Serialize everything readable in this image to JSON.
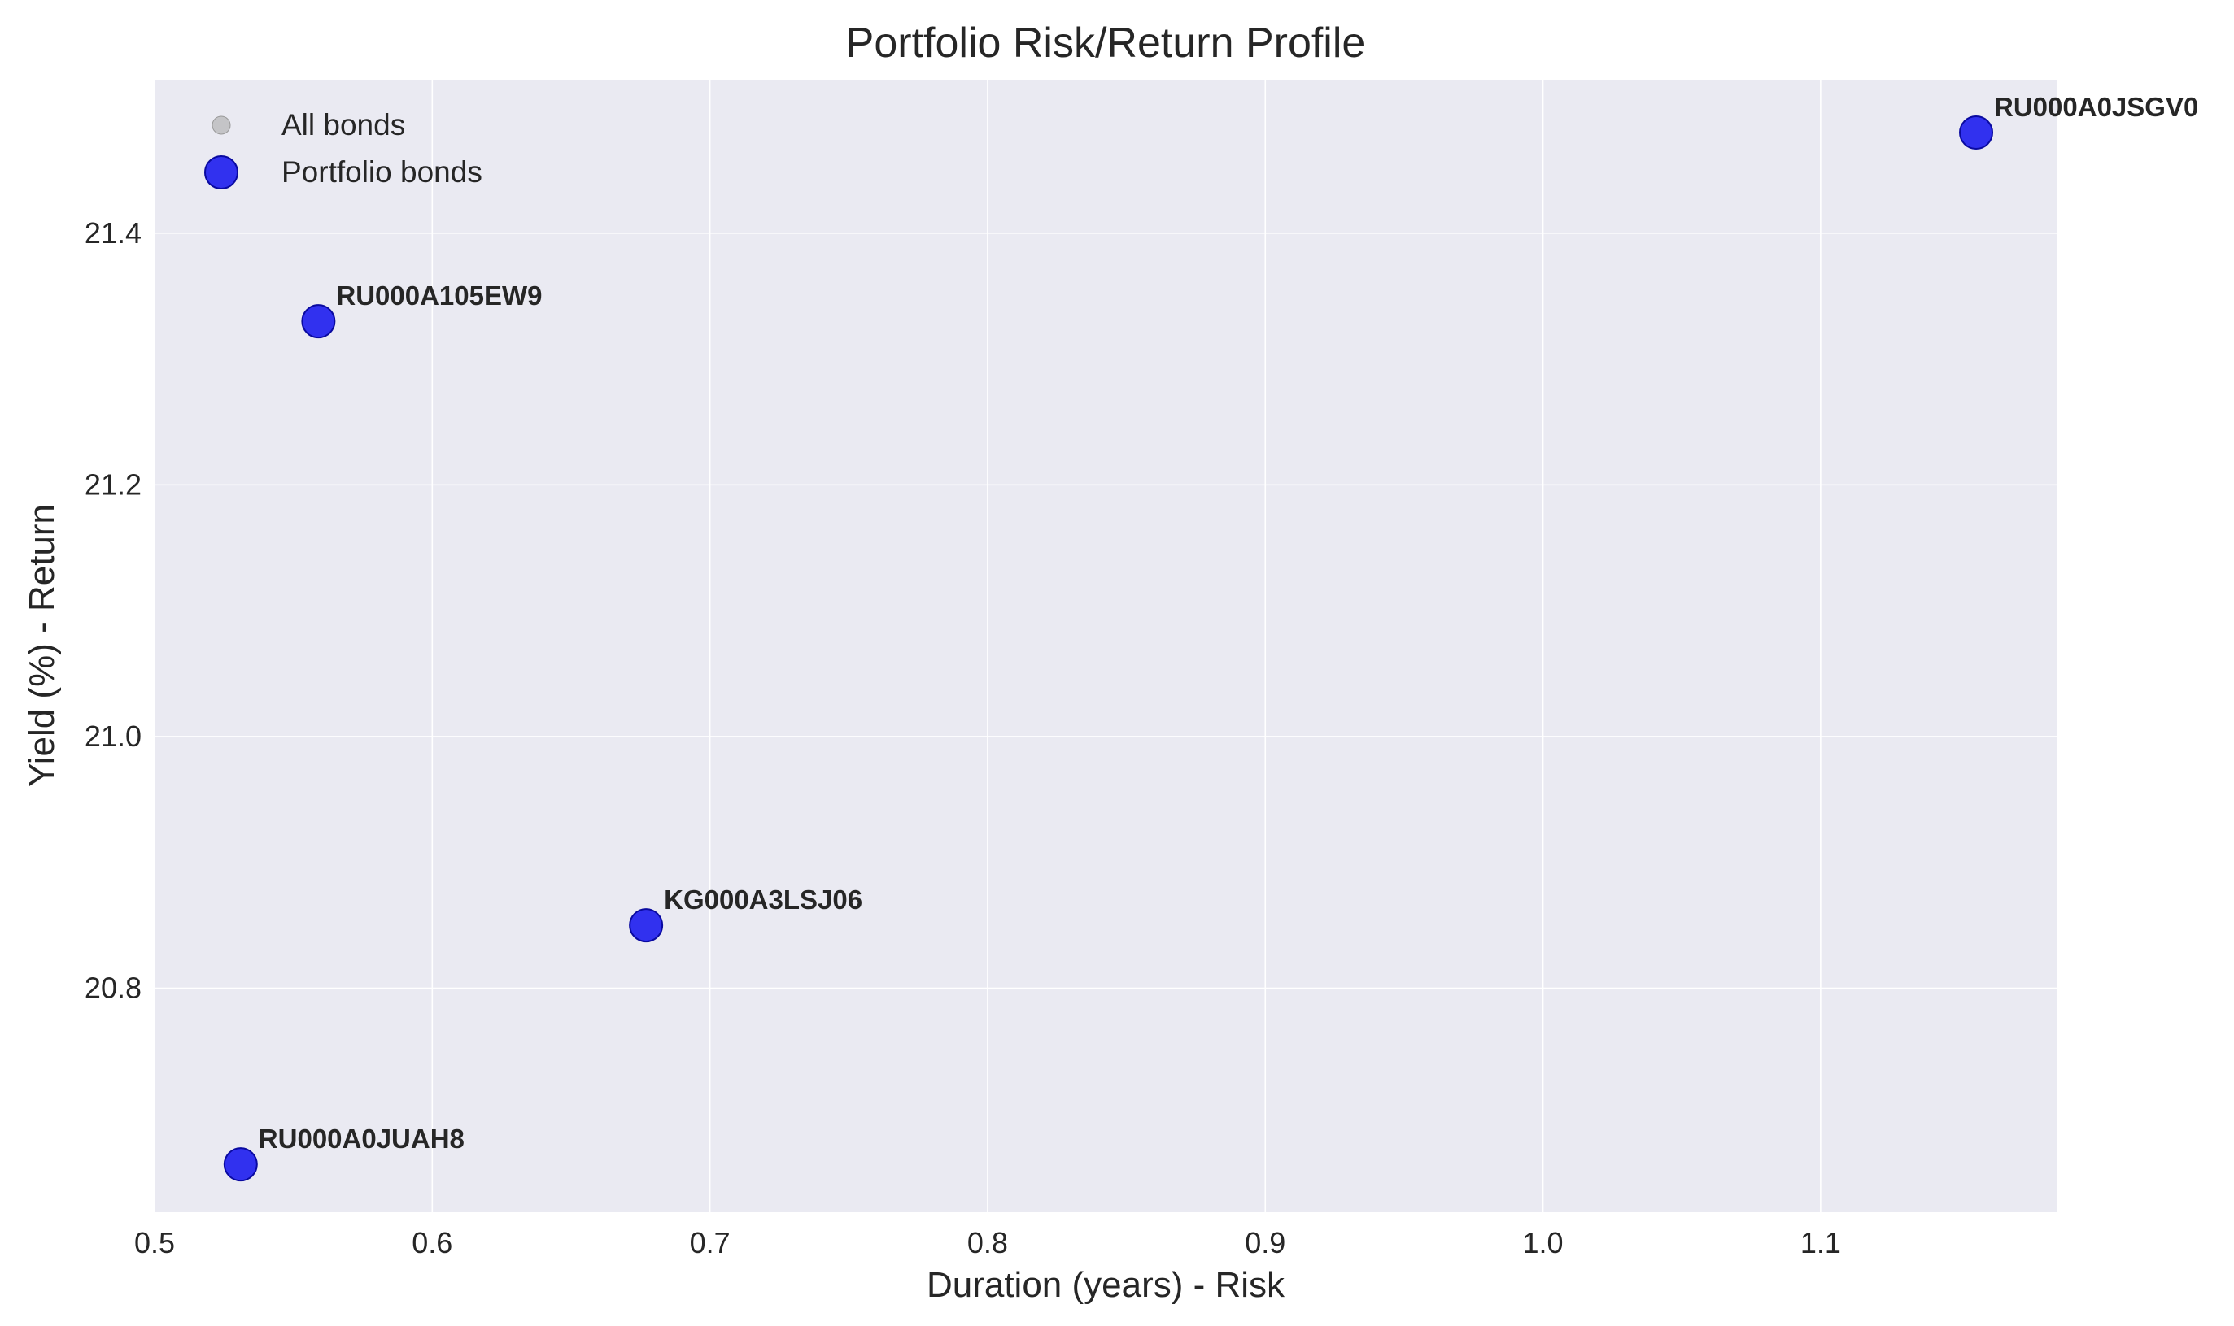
{
  "chart_data": {
    "type": "scatter",
    "title": "Portfolio Risk/Return Profile",
    "xlabel": "Duration (years) - Risk",
    "ylabel": "Yield (%) - Return",
    "xlim": [
      0.5,
      1.185
    ],
    "ylim": [
      20.622,
      21.522
    ],
    "xticks": [
      "0.5",
      "0.6",
      "0.7",
      "0.8",
      "0.9",
      "1.0",
      "1.1"
    ],
    "yticks": [
      "20.8",
      "21.0",
      "21.2",
      "21.4"
    ],
    "grid": true,
    "legend": {
      "placement": "top-left",
      "entries": [
        {
          "label": "All bonds",
          "color": "#aaaaaa"
        },
        {
          "label": "Portfolio bonds",
          "color": "#1010ee"
        }
      ]
    },
    "series": [
      {
        "name": "Portfolio bonds",
        "color": "#1010ee",
        "points": [
          {
            "x": 1.156,
            "y": 21.48,
            "label": "RU000A0JSGV0"
          },
          {
            "x": 0.559,
            "y": 21.33,
            "label": "RU000A105EW9"
          },
          {
            "x": 0.677,
            "y": 20.85,
            "label": "KG000A3LSJ06"
          },
          {
            "x": 0.531,
            "y": 20.66,
            "label": "RU000A0JUAH8"
          }
        ]
      }
    ]
  }
}
